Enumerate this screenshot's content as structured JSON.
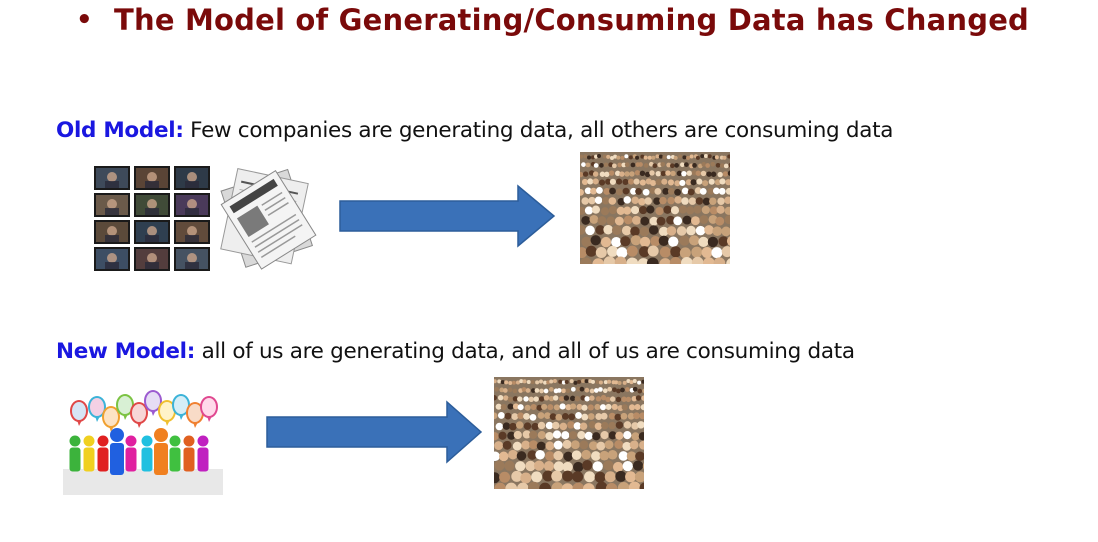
{
  "slide": {
    "bullet": "•",
    "title": "The Model of Generating/Consuming Data has Changed"
  },
  "old_model": {
    "label": "Old Model:",
    "text": " Few companies are generating data, all others are consuming data"
  },
  "new_model": {
    "label": "New Model:",
    "text": " all of us are generating data, and all of us are consuming data"
  },
  "colors": {
    "title": "#7a0a0a",
    "label": "#1a17e0",
    "arrow": "#3a71b8"
  }
}
